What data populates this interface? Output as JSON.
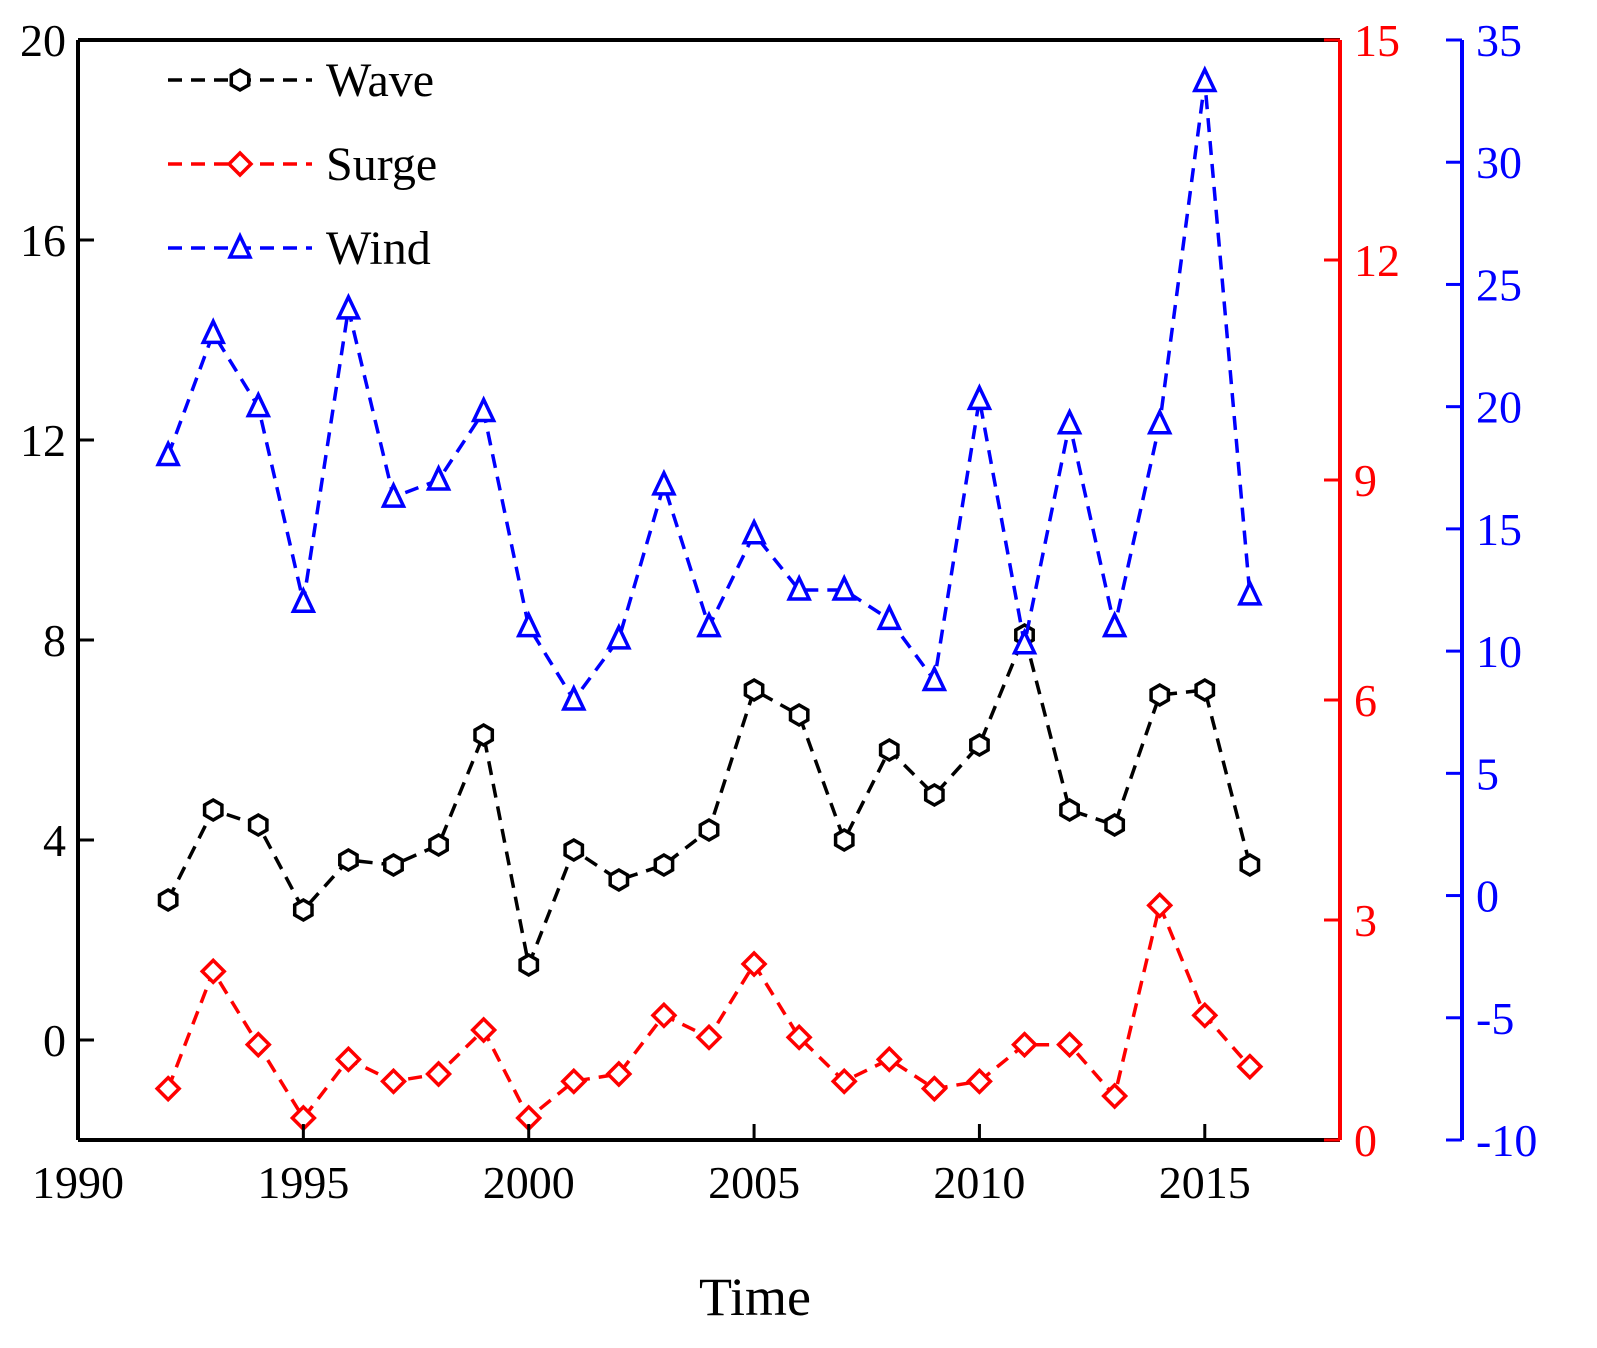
{
  "chart_data": {
    "type": "line",
    "xlabel": "Time",
    "x": [
      1992,
      1993,
      1994,
      1995,
      1996,
      1997,
      1998,
      1999,
      2000,
      2001,
      2002,
      2003,
      2004,
      2005,
      2006,
      2007,
      2008,
      2009,
      2010,
      2011,
      2012,
      2013,
      2014,
      2015,
      2016
    ],
    "xlim": [
      1990,
      2018
    ],
    "xticks": [
      "1990",
      "1995",
      "2000",
      "2005",
      "2010",
      "2015"
    ],
    "axes": {
      "left": {
        "ylim": [
          -2,
          20
        ],
        "ticks": [
          "0",
          "4",
          "8",
          "12",
          "16",
          "20"
        ],
        "color": "#000000"
      },
      "right1": {
        "ylim": [
          0,
          15
        ],
        "ticks": [
          "0",
          "3",
          "6",
          "9",
          "12",
          "15"
        ],
        "color": "#ff0000"
      },
      "right2": {
        "ylim": [
          -10,
          35
        ],
        "ticks": [
          "-10",
          "-5",
          "0",
          "5",
          "10",
          "15",
          "20",
          "25",
          "30",
          "35"
        ],
        "color": "#0000ff"
      }
    },
    "series": [
      {
        "name": "Wave",
        "axis": "left",
        "color": "#000000",
        "marker": "hexagon",
        "values": [
          2.8,
          4.6,
          4.3,
          2.6,
          3.6,
          3.5,
          3.9,
          6.1,
          1.5,
          3.8,
          3.2,
          3.5,
          4.2,
          7.0,
          6.5,
          4.0,
          5.8,
          4.9,
          5.9,
          8.1,
          4.6,
          4.3,
          6.9,
          7.0,
          3.5
        ]
      },
      {
        "name": "Surge",
        "axis": "right1",
        "color": "#ff0000",
        "marker": "diamond",
        "values": [
          0.7,
          2.3,
          1.3,
          0.3,
          1.1,
          0.8,
          0.9,
          1.5,
          0.3,
          0.8,
          0.9,
          1.7,
          1.4,
          2.4,
          1.4,
          0.8,
          1.1,
          0.7,
          0.8,
          1.3,
          1.3,
          0.6,
          3.2,
          1.7,
          1.0
        ]
      },
      {
        "name": "Wind",
        "axis": "right2",
        "color": "#0000ff",
        "marker": "triangle",
        "values": [
          18.0,
          23.0,
          20.0,
          12.0,
          24.0,
          16.3,
          17.0,
          19.8,
          11.0,
          8.0,
          10.5,
          16.8,
          11.0,
          14.8,
          12.5,
          12.5,
          11.3,
          8.8,
          20.3,
          10.3,
          19.3,
          11.0,
          19.3,
          33.3,
          12.3
        ]
      }
    ]
  }
}
